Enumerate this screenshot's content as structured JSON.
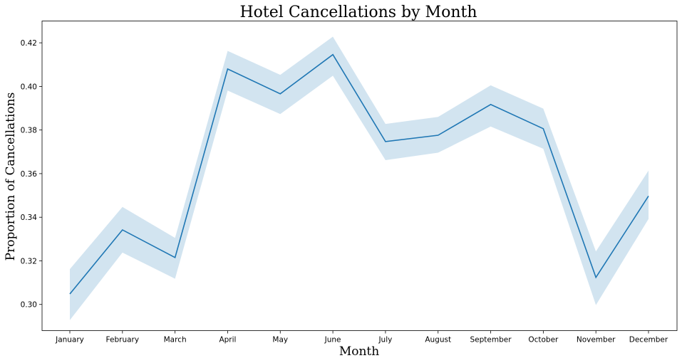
{
  "chart_data": {
    "type": "line",
    "title": "Hotel Cancellations by Month",
    "xlabel": "Month",
    "ylabel": "Proportion of Cancellations",
    "categories": [
      "January",
      "February",
      "March",
      "April",
      "May",
      "June",
      "July",
      "August",
      "September",
      "October",
      "November",
      "December"
    ],
    "series": [
      {
        "values": [
          0.3048,
          0.3342,
          0.3215,
          0.408,
          0.3966,
          0.4146,
          0.3747,
          0.3776,
          0.3917,
          0.3806,
          0.3124,
          0.3497
        ],
        "ci_lower": [
          0.2928,
          0.3238,
          0.3118,
          0.3981,
          0.3873,
          0.4049,
          0.3662,
          0.3696,
          0.3816,
          0.3714,
          0.2997,
          0.3392
        ],
        "ci_upper": [
          0.3162,
          0.3447,
          0.3305,
          0.4163,
          0.4053,
          0.4228,
          0.3828,
          0.386,
          0.4005,
          0.3898,
          0.3243,
          0.3614
        ],
        "color": "#1f77b4",
        "band_color": "#1f77b4"
      }
    ],
    "yticks": [
      "0.30",
      "0.32",
      "0.34",
      "0.36",
      "0.38",
      "0.40",
      "0.42"
    ],
    "ylim": [
      0.288,
      0.43
    ],
    "grid": false,
    "legend": "none"
  }
}
